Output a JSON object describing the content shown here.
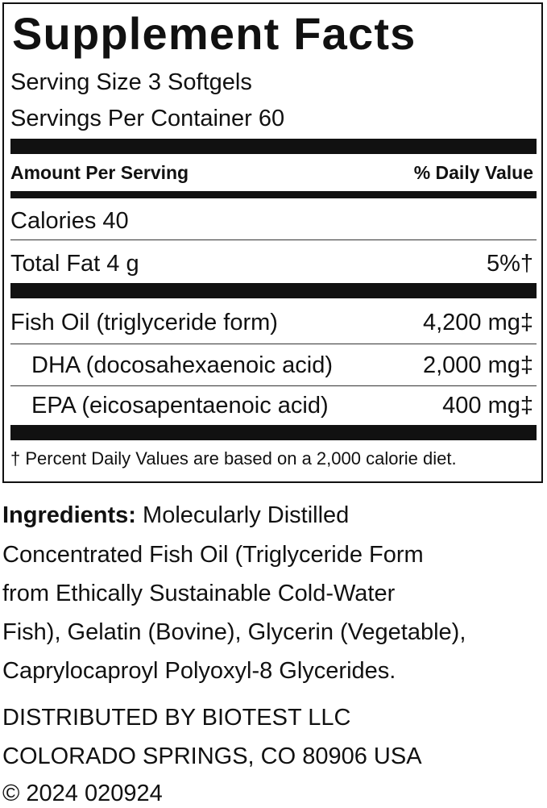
{
  "facts": {
    "title": "Supplement Facts",
    "serving_size": "Serving Size 3 Softgels",
    "servings_per_container": "Servings Per Container 60",
    "header": {
      "left": "Amount Per Serving",
      "right": "% Daily Value"
    },
    "rows": [
      {
        "label": "Calories 40",
        "value": ""
      },
      {
        "label": "Total Fat 4 g",
        "value": "5%†"
      },
      {
        "label": "Fish Oil (triglyceride form)",
        "value": "4,200 mg‡"
      },
      {
        "label": "DHA (docosahexaenoic acid)",
        "value": "2,000 mg‡"
      },
      {
        "label": "EPA (eicosapentaenoic acid)",
        "value": "400 mg‡"
      }
    ],
    "footnote": "† Percent Daily Values are based on a 2,000 calorie diet."
  },
  "ingredients": {
    "label": "Ingredients:",
    "lines": [
      "Molecularly Distilled",
      "Concentrated Fish Oil (Triglyceride Form",
      "from Ethically Sustainable Cold-Water",
      "Fish), Gelatin (Bovine), Glycerin (Vegetable),",
      "Caprylocaproyl Polyoxyl-8 Glycerides."
    ]
  },
  "distributor": [
    "DISTRIBUTED BY BIOTEST LLC",
    "COLORADO SPRINGS, CO 80906 USA",
    "© 2024 020924"
  ]
}
